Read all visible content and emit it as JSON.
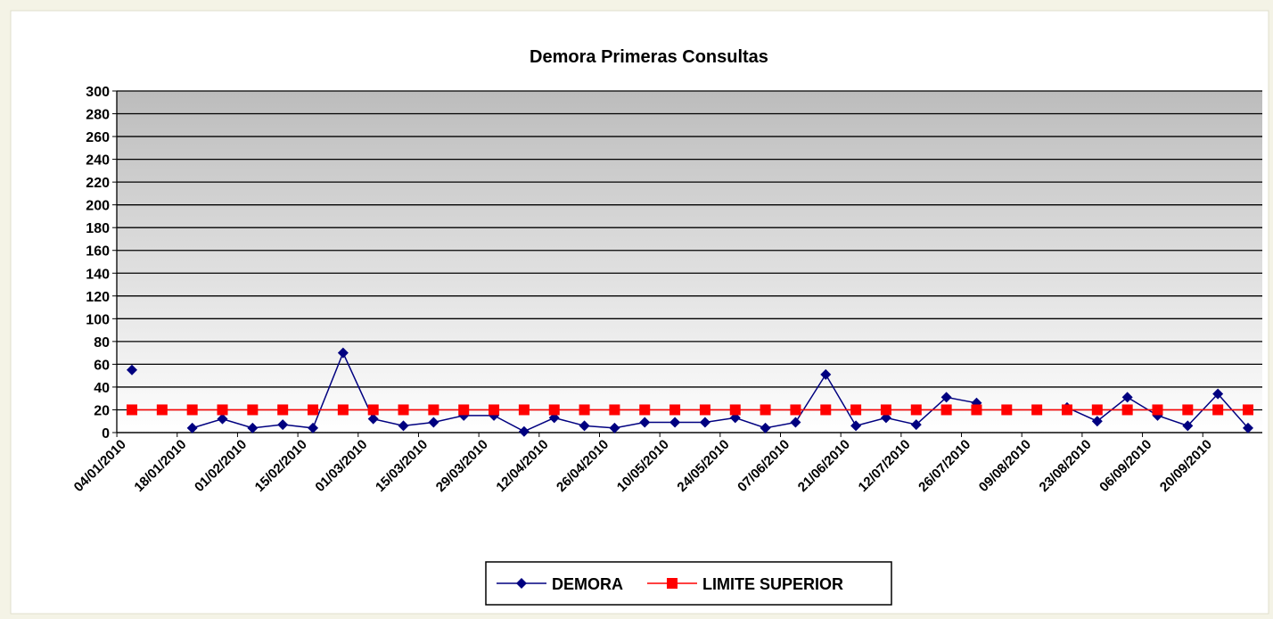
{
  "chart_data": {
    "type": "line",
    "title": "Demora Primeras Consultas",
    "categories": [
      "04/01/2010",
      null,
      "18/01/2010",
      null,
      "01/02/2010",
      null,
      "15/02/2010",
      null,
      "01/03/2010",
      null,
      "15/03/2010",
      null,
      "29/03/2010",
      null,
      "12/04/2010",
      null,
      "26/04/2010",
      null,
      "10/05/2010",
      null,
      "24/05/2010",
      null,
      "07/06/2010",
      null,
      "21/06/2010",
      null,
      "12/07/2010",
      null,
      "26/07/2010",
      null,
      "09/08/2010",
      null,
      "23/08/2010",
      null,
      "06/09/2010",
      null,
      "20/09/2010",
      null
    ],
    "series": [
      {
        "name": "DEMORA",
        "color": "#000080",
        "marker": "diamond",
        "values": [
          55,
          null,
          4,
          12,
          4,
          7,
          4,
          70,
          12,
          6,
          9,
          15,
          15,
          1,
          13,
          6,
          4,
          9,
          9,
          9,
          13,
          4,
          9,
          51,
          6,
          13,
          7,
          31,
          26,
          null,
          null,
          22,
          10,
          31,
          15,
          6,
          34,
          4
        ]
      },
      {
        "name": "LIMITE SUPERIOR",
        "color": "#ff0000",
        "marker": "square",
        "values": [
          20,
          20,
          20,
          20,
          20,
          20,
          20,
          20,
          20,
          20,
          20,
          20,
          20,
          20,
          20,
          20,
          20,
          20,
          20,
          20,
          20,
          20,
          20,
          20,
          20,
          20,
          20,
          20,
          20,
          20,
          20,
          20,
          20,
          20,
          20,
          20,
          20,
          20
        ]
      }
    ],
    "ylim": [
      0,
      300
    ],
    "yticks": [
      0,
      20,
      40,
      60,
      80,
      100,
      120,
      140,
      160,
      180,
      200,
      220,
      240,
      260,
      280,
      300
    ],
    "grid": true,
    "legend": "bottom"
  }
}
